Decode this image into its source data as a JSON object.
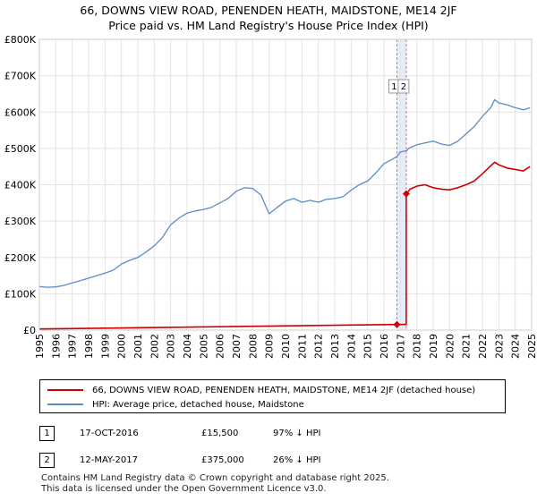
{
  "title": {
    "line1": "66, DOWNS VIEW ROAD, PENENDEN HEATH, MAIDSTONE, ME14 2JF",
    "line2": "Price paid vs. HM Land Registry's House Price Index (HPI)"
  },
  "colors": {
    "property": "#cc0000",
    "hpi": "#5b8cc4",
    "marker_band": "#dde6f3",
    "marker_line": "#c77aa0"
  },
  "chart_data": {
    "type": "line",
    "xlim": [
      1995,
      2025
    ],
    "ylim": [
      0,
      800000
    ],
    "y_ticks": [
      {
        "value": 0,
        "label": "£0"
      },
      {
        "value": 100000,
        "label": "£100K"
      },
      {
        "value": 200000,
        "label": "£200K"
      },
      {
        "value": 300000,
        "label": "£300K"
      },
      {
        "value": 400000,
        "label": "£400K"
      },
      {
        "value": 500000,
        "label": "£500K"
      },
      {
        "value": 600000,
        "label": "£600K"
      },
      {
        "value": 700000,
        "label": "£700K"
      },
      {
        "value": 800000,
        "label": "£800K"
      }
    ],
    "x_ticks": [
      "1995",
      "1996",
      "1997",
      "1998",
      "1999",
      "2000",
      "2001",
      "2002",
      "2003",
      "2004",
      "2005",
      "2006",
      "2007",
      "2008",
      "2009",
      "2010",
      "2011",
      "2012",
      "2013",
      "2014",
      "2015",
      "2016",
      "2017",
      "2018",
      "2019",
      "2020",
      "2021",
      "2022",
      "2023",
      "2024",
      "2025"
    ],
    "series": [
      {
        "name": "HPI: Average price, detached house, Maidstone",
        "x": [
          1995.0,
          1995.5,
          1996.0,
          1996.5,
          1997.0,
          1997.5,
          1998.0,
          1998.5,
          1999.0,
          1999.5,
          2000.0,
          2000.5,
          2001.0,
          2001.5,
          2002.0,
          2002.5,
          2003.0,
          2003.5,
          2004.0,
          2004.5,
          2005.0,
          2005.5,
          2006.0,
          2006.5,
          2007.0,
          2007.5,
          2008.0,
          2008.5,
          2009.0,
          2009.5,
          2010.0,
          2010.5,
          2011.0,
          2011.5,
          2012.0,
          2012.5,
          2013.0,
          2013.5,
          2014.0,
          2014.5,
          2015.0,
          2015.5,
          2016.0,
          2016.5,
          2016.8,
          2017.0,
          2017.4,
          2017.5,
          2018.0,
          2018.5,
          2019.0,
          2019.5,
          2020.0,
          2020.5,
          2021.0,
          2021.5,
          2022.0,
          2022.5,
          2022.75,
          2023.0,
          2023.5,
          2024.0,
          2024.5,
          2024.9
        ],
        "values": [
          120000,
          118000,
          119000,
          123000,
          130000,
          136000,
          143000,
          150000,
          157000,
          165000,
          182000,
          192000,
          200000,
          215000,
          232000,
          255000,
          290000,
          308000,
          322000,
          328000,
          332000,
          338000,
          350000,
          362000,
          382000,
          392000,
          390000,
          372000,
          320000,
          338000,
          355000,
          362000,
          352000,
          357000,
          352000,
          360000,
          362000,
          367000,
          385000,
          400000,
          410000,
          432000,
          458000,
          470000,
          478000,
          490000,
          494000,
          500000,
          510000,
          515000,
          520000,
          512000,
          508000,
          520000,
          540000,
          560000,
          588000,
          612000,
          634000,
          625000,
          620000,
          612000,
          606000,
          612000
        ]
      },
      {
        "name": "66, DOWNS VIEW ROAD, PENENDEN HEATH, MAIDSTONE, ME14 2JF (detached house)",
        "x": [
          1995.0,
          2016.79,
          2016.79,
          2017.36,
          2017.36,
          2017.6,
          2018.0,
          2018.5,
          2019.0,
          2019.5,
          2020.0,
          2020.5,
          2021.0,
          2021.5,
          2022.0,
          2022.5,
          2022.75,
          2023.0,
          2023.5,
          2024.0,
          2024.5,
          2024.9
        ],
        "values": [
          3200,
          15500,
          15500,
          15500,
          375000,
          388000,
          396000,
          400000,
          392000,
          388000,
          386000,
          392000,
          400000,
          410000,
          430000,
          452000,
          462000,
          455000,
          446000,
          442000,
          438000,
          450000
        ]
      }
    ],
    "sales": [
      {
        "label": "1",
        "x": 2016.79,
        "value": 15500
      },
      {
        "label": "2",
        "x": 2017.36,
        "value": 375000
      }
    ]
  },
  "legend": {
    "property": "66, DOWNS VIEW ROAD, PENENDEN HEATH, MAIDSTONE, ME14 2JF (detached house)",
    "hpi": "HPI: Average price, detached house, Maidstone"
  },
  "transactions": [
    {
      "num": "1",
      "date": "17-OCT-2016",
      "price": "£15,500",
      "hpi": "97% ↓ HPI"
    },
    {
      "num": "2",
      "date": "12-MAY-2017",
      "price": "£375,000",
      "hpi": "26% ↓ HPI"
    }
  ],
  "footer": {
    "line1": "Contains HM Land Registry data © Crown copyright and database right 2025.",
    "line2": "This data is licensed under the Open Government Licence v3.0."
  }
}
